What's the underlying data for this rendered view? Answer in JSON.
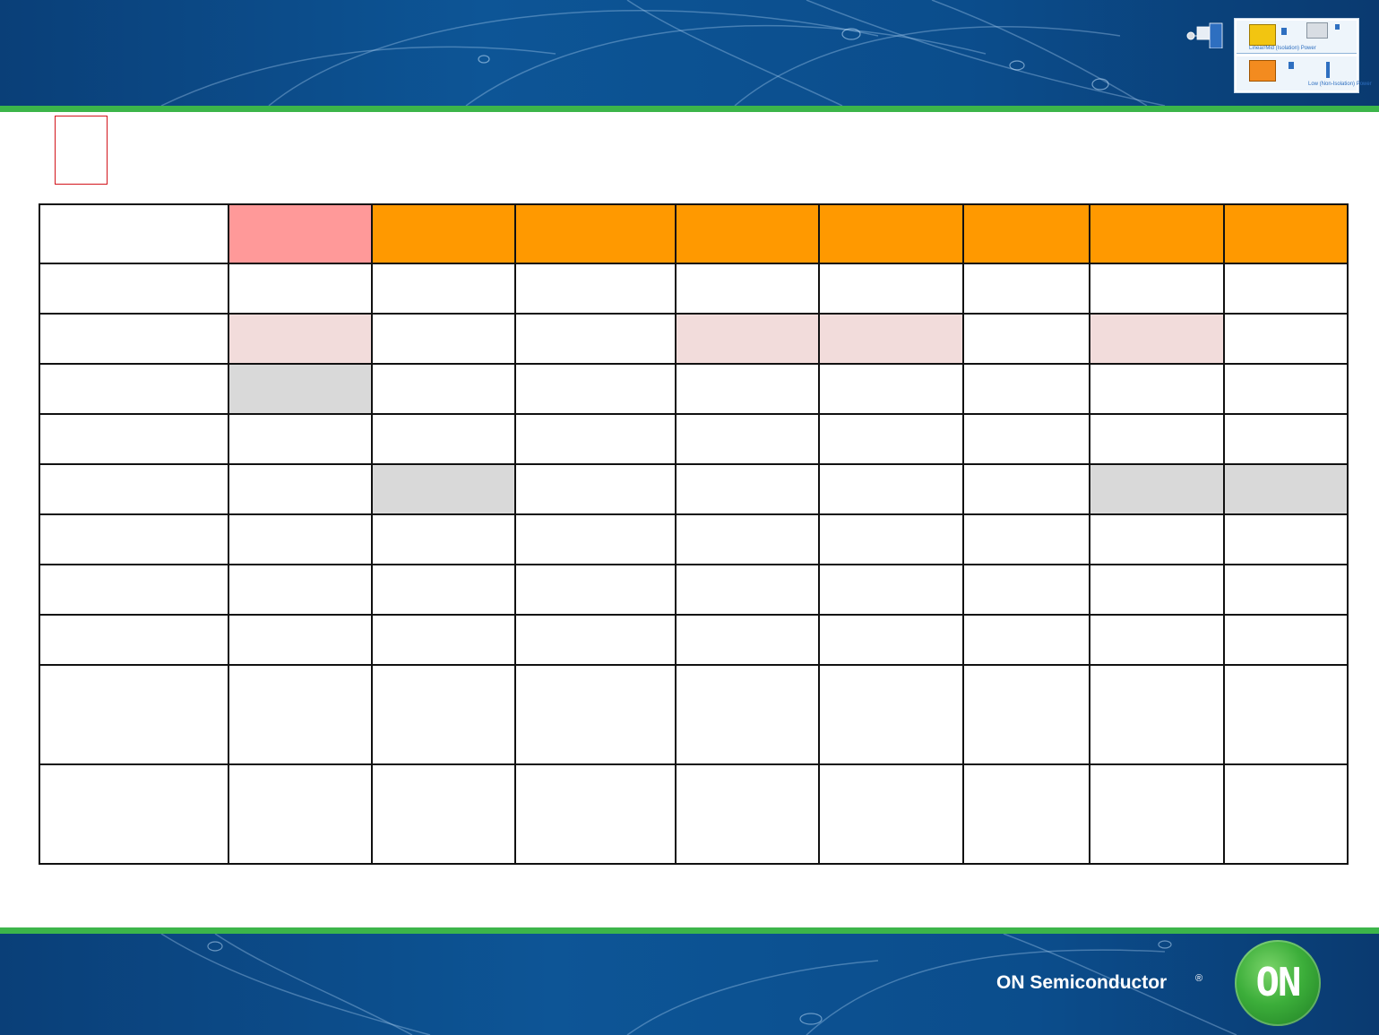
{
  "header": {
    "thumbnail": {
      "top_label": "Linear/Mid (Isolation) Power",
      "bottom_label": "Low (Non-Isolation) Power",
      "colors": {
        "yellow_block": "#f2c511",
        "orange_block": "#f38b1f",
        "blue_block": "#2e6fc0"
      }
    }
  },
  "title_marker": {
    "color": "#d2141b"
  },
  "table": {
    "header_colors": [
      "#ffffff",
      "#ff9999",
      "#ff9900",
      "#ff9900",
      "#ff9900",
      "#ff9900",
      "#ff9900",
      "#ff9900",
      "#ff9900"
    ],
    "rows": [
      {
        "fills": [
          "",
          "",
          "",
          "",
          "",
          "",
          "",
          "",
          ""
        ]
      },
      {
        "fills": [
          "",
          "pink",
          "",
          "",
          "pink",
          "pink",
          "",
          "pink",
          ""
        ]
      },
      {
        "fills": [
          "",
          "gray",
          "",
          "",
          "",
          "",
          "",
          "",
          ""
        ]
      },
      {
        "fills": [
          "",
          "",
          "",
          "",
          "",
          "",
          "",
          "",
          ""
        ]
      },
      {
        "fills": [
          "",
          "",
          "gray",
          "",
          "",
          "",
          "",
          "gray",
          "gray"
        ]
      },
      {
        "fills": [
          "",
          "",
          "",
          "",
          "",
          "",
          "",
          "",
          ""
        ]
      },
      {
        "fills": [
          "",
          "",
          "",
          "",
          "",
          "",
          "",
          "",
          ""
        ]
      },
      {
        "fills": [
          "",
          "",
          "",
          "",
          "",
          "",
          "",
          "",
          ""
        ]
      },
      {
        "fills": [
          "",
          "",
          "",
          "",
          "",
          "",
          "",
          "",
          ""
        ]
      },
      {
        "fills": [
          "",
          "",
          "",
          "",
          "",
          "",
          "",
          "",
          ""
        ]
      }
    ]
  },
  "footer": {
    "brand_name": "ON Semiconductor",
    "registered_mark": "®",
    "logo_text": "ON"
  }
}
